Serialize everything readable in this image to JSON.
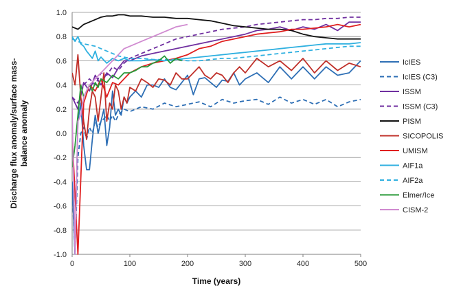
{
  "chart_data": {
    "type": "line",
    "title": "",
    "xlabel": "Time (years)",
    "ylabel_lines": [
      "Discharge flux anomaly/surface mass-",
      "balance anomaly"
    ],
    "xlim": [
      0,
      500
    ],
    "ylim": [
      -1.0,
      1.0
    ],
    "xticks": [
      0,
      100,
      200,
      300,
      400,
      500
    ],
    "yticks": [
      1.0,
      0.8,
      0.6,
      0.4,
      0.2,
      0.0,
      -0.2,
      -0.4,
      -0.6,
      -0.8,
      -1.0
    ],
    "ytick_labels": [
      "1.0",
      "0.8",
      "0.6",
      "0.4",
      "0.2",
      "0.0",
      "-0.2",
      "-0.4",
      "-0.6",
      "-0.8",
      "-1.0"
    ],
    "grid": "horizontal",
    "legend_position": "right",
    "series": [
      {
        "name": "IcIES",
        "color": "#2e6fb5",
        "dash": "solid",
        "x": [
          0,
          5,
          10,
          15,
          20,
          25,
          30,
          35,
          40,
          45,
          50,
          55,
          60,
          65,
          70,
          75,
          80,
          85,
          90,
          95,
          100,
          110,
          120,
          130,
          140,
          150,
          160,
          170,
          180,
          190,
          200,
          210,
          220,
          230,
          240,
          250,
          260,
          270,
          280,
          290,
          300,
          320,
          340,
          360,
          380,
          400,
          420,
          440,
          460,
          480,
          500
        ],
        "y": [
          -0.4,
          -1.0,
          0.1,
          0.25,
          -0.1,
          -0.3,
          -0.3,
          -0.05,
          0.15,
          0.0,
          0.1,
          0.2,
          -0.1,
          0.05,
          0.35,
          0.15,
          0.2,
          0.15,
          0.3,
          0.25,
          0.3,
          0.35,
          0.3,
          0.4,
          0.4,
          0.38,
          0.45,
          0.38,
          0.36,
          0.42,
          0.48,
          0.32,
          0.45,
          0.46,
          0.42,
          0.38,
          0.44,
          0.43,
          0.5,
          0.4,
          0.45,
          0.5,
          0.42,
          0.55,
          0.45,
          0.55,
          0.45,
          0.55,
          0.48,
          0.5,
          0.6
        ]
      },
      {
        "name": "IcIES (C3)",
        "color": "#2e6fb5",
        "dash": "dashed",
        "x": [
          0,
          5,
          10,
          15,
          20,
          25,
          30,
          35,
          40,
          45,
          50,
          55,
          60,
          65,
          70,
          75,
          80,
          90,
          100,
          120,
          140,
          160,
          180,
          200,
          220,
          240,
          260,
          280,
          300,
          320,
          340,
          360,
          380,
          400,
          420,
          440,
          460,
          480,
          500
        ],
        "y": [
          -0.45,
          -1.0,
          -0.2,
          0.0,
          0.05,
          -0.05,
          0.05,
          0.0,
          0.1,
          0.05,
          0.1,
          0.12,
          0.15,
          0.1,
          0.15,
          0.1,
          0.15,
          0.2,
          0.18,
          0.22,
          0.2,
          0.25,
          0.22,
          0.24,
          0.26,
          0.22,
          0.28,
          0.25,
          0.27,
          0.28,
          0.24,
          0.3,
          0.25,
          0.28,
          0.24,
          0.28,
          0.22,
          0.26,
          0.28
        ]
      },
      {
        "name": "ISSM",
        "color": "#7030a0",
        "dash": "solid",
        "x": [
          0,
          10,
          20,
          30,
          40,
          50,
          60,
          70,
          80,
          90,
          100,
          110,
          120,
          140,
          160,
          180,
          200,
          220,
          240,
          260,
          280,
          300,
          320,
          340,
          360,
          380,
          400,
          420,
          440,
          460,
          480,
          500
        ],
        "y": [
          0.3,
          0.2,
          0.42,
          0.35,
          0.48,
          0.4,
          0.5,
          0.46,
          0.54,
          0.6,
          0.6,
          0.62,
          0.64,
          0.66,
          0.68,
          0.7,
          0.72,
          0.74,
          0.76,
          0.78,
          0.8,
          0.82,
          0.85,
          0.86,
          0.88,
          0.85,
          0.88,
          0.86,
          0.9,
          0.85,
          0.92,
          0.92
        ]
      },
      {
        "name": "ISSM (C3)",
        "color": "#7030a0",
        "dash": "dashed",
        "x": [
          0,
          10,
          20,
          30,
          40,
          50,
          60,
          70,
          80,
          90,
          100,
          120,
          140,
          160,
          180,
          200,
          220,
          240,
          260,
          280,
          300,
          320,
          340,
          360,
          380,
          400,
          420,
          440,
          460,
          480,
          500
        ],
        "y": [
          0.3,
          0.25,
          0.4,
          0.45,
          0.4,
          0.5,
          0.48,
          0.55,
          0.52,
          0.58,
          0.62,
          0.66,
          0.7,
          0.74,
          0.78,
          0.8,
          0.82,
          0.84,
          0.86,
          0.87,
          0.88,
          0.9,
          0.91,
          0.92,
          0.93,
          0.94,
          0.94,
          0.95,
          0.95,
          0.96,
          0.96
        ]
      },
      {
        "name": "PISM",
        "color": "#111111",
        "dash": "solid",
        "x": [
          0,
          10,
          20,
          30,
          40,
          50,
          60,
          70,
          80,
          90,
          100,
          120,
          140,
          160,
          180,
          200,
          220,
          240,
          260,
          280,
          300,
          320,
          340,
          360,
          380,
          400,
          420,
          440,
          460,
          480,
          500
        ],
        "y": [
          0.88,
          0.86,
          0.9,
          0.92,
          0.94,
          0.96,
          0.97,
          0.97,
          0.98,
          0.98,
          0.97,
          0.97,
          0.96,
          0.96,
          0.95,
          0.95,
          0.94,
          0.93,
          0.91,
          0.89,
          0.88,
          0.87,
          0.86,
          0.86,
          0.85,
          0.82,
          0.8,
          0.79,
          0.78,
          0.78,
          0.78
        ]
      },
      {
        "name": "SICOPOLIS",
        "color": "#c0302a",
        "dash": "solid",
        "x": [
          0,
          5,
          10,
          15,
          20,
          25,
          30,
          35,
          40,
          45,
          50,
          55,
          60,
          65,
          70,
          75,
          80,
          85,
          90,
          95,
          100,
          110,
          120,
          130,
          140,
          150,
          160,
          170,
          180,
          190,
          200,
          210,
          220,
          230,
          240,
          250,
          260,
          270,
          280,
          290,
          300,
          320,
          340,
          360,
          380,
          400,
          420,
          440,
          460,
          480,
          500
        ],
        "y": [
          0.5,
          0.4,
          0.65,
          0.3,
          0.1,
          -0.05,
          0.2,
          0.35,
          0.3,
          0.1,
          0.3,
          0.5,
          0.1,
          0.25,
          0.2,
          0.4,
          0.35,
          0.2,
          0.3,
          0.25,
          0.38,
          0.35,
          0.45,
          0.42,
          0.38,
          0.45,
          0.44,
          0.4,
          0.5,
          0.45,
          0.45,
          0.5,
          0.55,
          0.48,
          0.45,
          0.5,
          0.48,
          0.42,
          0.5,
          0.55,
          0.5,
          0.62,
          0.55,
          0.6,
          0.52,
          0.62,
          0.5,
          0.6,
          0.52,
          0.58,
          0.55
        ]
      },
      {
        "name": "UMISM",
        "color": "#e02020",
        "dash": "solid",
        "x": [
          0,
          10,
          20,
          30,
          40,
          50,
          60,
          70,
          80,
          90,
          100,
          120,
          140,
          160,
          180,
          200,
          220,
          240,
          260,
          280,
          300,
          320,
          340,
          360,
          380,
          400,
          420,
          440,
          460,
          480,
          500
        ],
        "y": [
          0.0,
          -1.0,
          0.25,
          0.4,
          0.35,
          0.45,
          0.3,
          0.42,
          0.4,
          0.45,
          0.5,
          0.55,
          0.58,
          0.6,
          0.62,
          0.65,
          0.7,
          0.72,
          0.76,
          0.78,
          0.8,
          0.82,
          0.83,
          0.84,
          0.86,
          0.86,
          0.87,
          0.88,
          0.9,
          0.88,
          0.9
        ]
      },
      {
        "name": "AIF1a",
        "color": "#2fb0e0",
        "dash": "solid",
        "x": [
          0,
          5,
          10,
          15,
          20,
          25,
          30,
          35,
          40,
          45,
          50,
          60,
          70,
          80,
          90,
          100,
          120,
          140,
          160,
          180,
          200,
          220,
          240,
          260,
          280,
          300,
          320,
          340,
          360,
          380,
          400,
          420,
          440,
          460,
          480,
          500
        ],
        "y": [
          0.8,
          0.76,
          0.8,
          0.74,
          0.72,
          0.68,
          0.65,
          0.62,
          0.68,
          0.6,
          0.63,
          0.58,
          0.62,
          0.6,
          0.62,
          0.6,
          0.6,
          0.61,
          0.6,
          0.61,
          0.62,
          0.63,
          0.64,
          0.65,
          0.66,
          0.67,
          0.68,
          0.69,
          0.7,
          0.71,
          0.72,
          0.73,
          0.74,
          0.74,
          0.74,
          0.75
        ]
      },
      {
        "name": "AIF2a",
        "color": "#2fb0e0",
        "dash": "dashed",
        "x": [
          0,
          10,
          20,
          30,
          40,
          50,
          60,
          70,
          80,
          90,
          100,
          120,
          140,
          160,
          180,
          200,
          220,
          240,
          260,
          280,
          300,
          320,
          340,
          360,
          380,
          400,
          420,
          440,
          460,
          480,
          500
        ],
        "y": [
          0.78,
          0.76,
          0.74,
          0.73,
          0.72,
          0.7,
          0.68,
          0.66,
          0.64,
          0.63,
          0.62,
          0.62,
          0.61,
          0.61,
          0.61,
          0.6,
          0.6,
          0.61,
          0.62,
          0.62,
          0.63,
          0.64,
          0.65,
          0.66,
          0.67,
          0.68,
          0.69,
          0.7,
          0.71,
          0.72,
          0.72
        ]
      },
      {
        "name": "Elmer/Ice",
        "color": "#2a9a3a",
        "dash": "solid",
        "x": [
          0,
          5,
          10,
          15,
          20,
          25,
          30,
          35,
          40,
          45,
          50,
          60,
          70,
          80,
          90,
          100,
          110,
          120,
          130,
          140,
          150,
          160,
          170,
          180,
          190
        ],
        "y": [
          -0.28,
          -0.1,
          0.15,
          0.4,
          0.3,
          0.35,
          0.4,
          0.35,
          0.42,
          0.38,
          0.45,
          0.42,
          0.48,
          0.45,
          0.5,
          0.5,
          0.52,
          0.55,
          0.55,
          0.58,
          0.6,
          0.64,
          0.58,
          0.62,
          0.6
        ]
      },
      {
        "name": "CISM-2",
        "color": "#d08ad0",
        "dash": "solid",
        "x": [
          0,
          5,
          10,
          15,
          20,
          30,
          40,
          50,
          60,
          70,
          80,
          90,
          100,
          120,
          140,
          160,
          180,
          200
        ],
        "y": [
          0.2,
          -1.0,
          0.1,
          0.15,
          0.3,
          0.4,
          0.45,
          0.5,
          0.55,
          0.6,
          0.65,
          0.7,
          0.72,
          0.76,
          0.8,
          0.84,
          0.88,
          0.9
        ]
      }
    ]
  }
}
